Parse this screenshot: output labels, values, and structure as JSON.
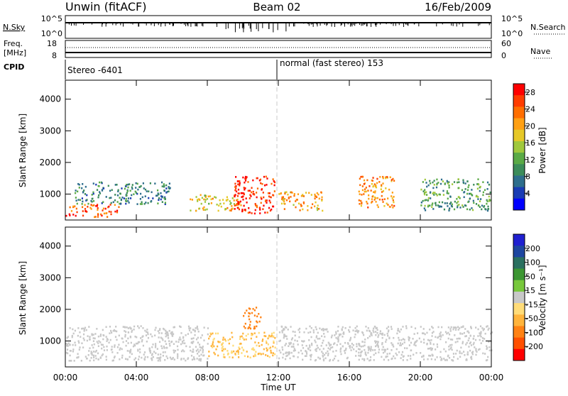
{
  "header": {
    "station": "Unwin (fitACF)",
    "beam": "Beam 02",
    "date": "16/Feb/2009"
  },
  "noise_panel": {
    "left_label": "N.Sky",
    "left_ticks": [
      "10^5",
      "10^0"
    ],
    "right_ticks": [
      "10^5",
      "10^0"
    ],
    "right_label": "N.Search"
  },
  "freq_panel": {
    "left_label_line1": "Freq.",
    "left_label_line2": "[MHz]",
    "left_ticks": [
      "18",
      "8"
    ],
    "right_ticks": [
      "60",
      "0"
    ],
    "right_label": "Nave"
  },
  "cpid_panel": {
    "label": "CPID",
    "program_1": "Stereo -6401",
    "program_2": "normal (fast stereo) 153"
  },
  "colors": {
    "power_scale": [
      "#0000ff",
      "#1a3cb4",
      "#2e6e8c",
      "#3c8c5a",
      "#5aaa46",
      "#a0c83c",
      "#e6c828",
      "#ffa014",
      "#ff6e00",
      "#ff3c00",
      "#ff0000"
    ],
    "velocity_scale": [
      "#2020d0",
      "#1e46a0",
      "#2a7060",
      "#3c9632",
      "#78c83c",
      "#c8c8c8",
      "#ffdc78",
      "#ffb43c",
      "#ff8214",
      "#ff5000",
      "#ff0000"
    ],
    "ground_scatter": "#bebebe"
  },
  "chart_data": [
    {
      "type": "heatmap",
      "title": "",
      "xlabel": "Time UT",
      "ylabel": "Slant Range [km]",
      "x_ticks": [
        "00:00",
        "04:00",
        "08:00",
        "12:00",
        "16:00",
        "20:00",
        "00:00"
      ],
      "y_ticks": [
        "1000",
        "2000",
        "3000",
        "4000"
      ],
      "xlim_hours": [
        0,
        24
      ],
      "ylim_km": [
        180,
        4600
      ],
      "colorbar_label": "Power [dB]",
      "colorbar_ticks": [
        "4",
        "8",
        "12",
        "16",
        "20",
        "24",
        "28"
      ],
      "colorbar_range": [
        0,
        30
      ],
      "marked_time_hours": 12,
      "approx_regions": [
        {
          "t_start": 0.0,
          "t_end": 3.0,
          "r_min": 300,
          "r_max": 700,
          "level_db": 26
        },
        {
          "t_start": 0.5,
          "t_end": 6.0,
          "r_min": 700,
          "r_max": 1400,
          "level_db": 8
        },
        {
          "t_start": 7.0,
          "t_end": 10.0,
          "r_min": 500,
          "r_max": 1000,
          "level_db": 18
        },
        {
          "t_start": 9.5,
          "t_end": 11.8,
          "r_min": 400,
          "r_max": 1600,
          "level_db": 28
        },
        {
          "t_start": 12.0,
          "t_end": 14.5,
          "r_min": 500,
          "r_max": 1100,
          "level_db": 20
        },
        {
          "t_start": 16.5,
          "t_end": 18.5,
          "r_min": 600,
          "r_max": 1600,
          "level_db": 22
        },
        {
          "t_start": 20.0,
          "t_end": 24.0,
          "r_min": 500,
          "r_max": 1500,
          "level_db": 10
        }
      ]
    },
    {
      "type": "heatmap",
      "title": "",
      "xlabel": "Time UT",
      "ylabel": "Slant Range [km]",
      "x_ticks": [
        "00:00",
        "04:00",
        "08:00",
        "12:00",
        "16:00",
        "20:00",
        "00:00"
      ],
      "y_ticks": [
        "1000",
        "2000",
        "3000",
        "4000"
      ],
      "xlim_hours": [
        0,
        24
      ],
      "ylim_km": [
        180,
        4600
      ],
      "colorbar_label": "Velocity [m s^-1]",
      "colorbar_ticks": [
        "200",
        "100",
        "50",
        "15",
        "-15",
        "-50",
        "-100",
        "-200"
      ],
      "colorbar_range": [
        -250,
        250
      ],
      "marked_time_hours": 12,
      "approx_regions": [
        {
          "t_start": 0.0,
          "t_end": 8.0,
          "r_min": 400,
          "r_max": 1500,
          "velocity": 0
        },
        {
          "t_start": 8.0,
          "t_end": 11.8,
          "r_min": 500,
          "r_max": 1300,
          "velocity": -80
        },
        {
          "t_start": 10.0,
          "t_end": 11.0,
          "r_min": 1400,
          "r_max": 2100,
          "velocity": -150
        },
        {
          "t_start": 12.0,
          "t_end": 24.0,
          "r_min": 400,
          "r_max": 1500,
          "velocity": 0
        }
      ]
    }
  ]
}
